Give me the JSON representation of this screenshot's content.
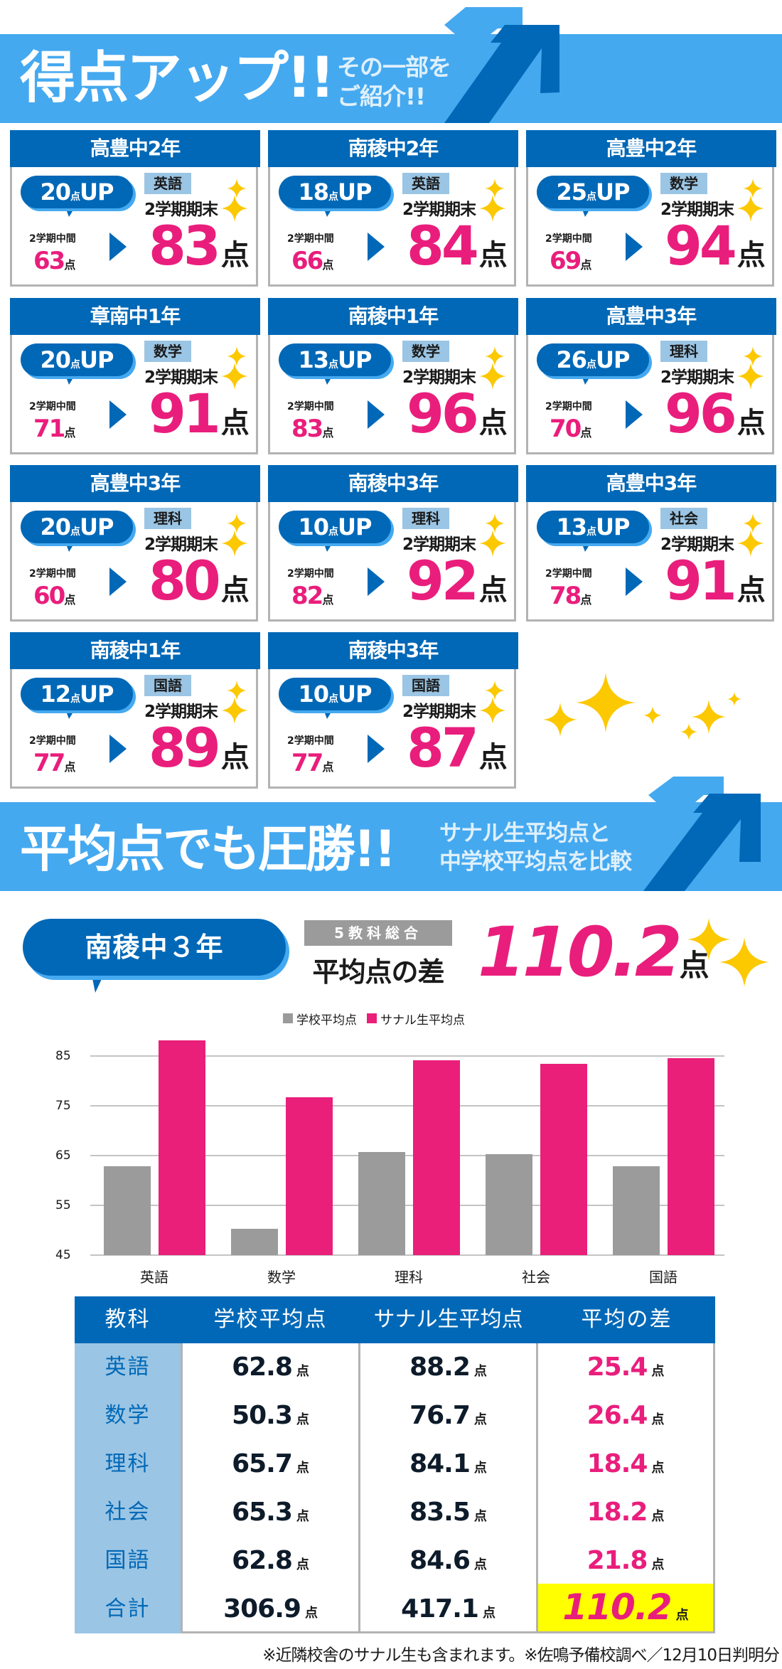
{
  "header": {
    "title": "得点アップ!!",
    "subtitle_line1": "その一部を",
    "subtitle_line2": "ご紹介!!"
  },
  "cards": [
    {
      "school": "高豊中2年",
      "gain": "20",
      "gain_unit": "点",
      "gain_suffix": "UP",
      "mid_label": "2学期中間",
      "mid_score": "63",
      "subject": "英語",
      "final_label": "2学期期末",
      "final_score": "83",
      "unit": "点"
    },
    {
      "school": "南稜中2年",
      "gain": "18",
      "gain_unit": "点",
      "gain_suffix": "UP",
      "mid_label": "2学期中間",
      "mid_score": "66",
      "subject": "英語",
      "final_label": "2学期期末",
      "final_score": "84",
      "unit": "点"
    },
    {
      "school": "高豊中2年",
      "gain": "25",
      "gain_unit": "点",
      "gain_suffix": "UP",
      "mid_label": "2学期中間",
      "mid_score": "69",
      "subject": "数学",
      "final_label": "2学期期末",
      "final_score": "94",
      "unit": "点"
    },
    {
      "school": "章南中1年",
      "gain": "20",
      "gain_unit": "点",
      "gain_suffix": "UP",
      "mid_label": "2学期中間",
      "mid_score": "71",
      "subject": "数学",
      "final_label": "2学期期末",
      "final_score": "91",
      "unit": "点"
    },
    {
      "school": "南稜中1年",
      "gain": "13",
      "gain_unit": "点",
      "gain_suffix": "UP",
      "mid_label": "2学期中間",
      "mid_score": "83",
      "subject": "数学",
      "final_label": "2学期期末",
      "final_score": "96",
      "unit": "点"
    },
    {
      "school": "高豊中3年",
      "gain": "26",
      "gain_unit": "点",
      "gain_suffix": "UP",
      "mid_label": "2学期中間",
      "mid_score": "70",
      "subject": "理科",
      "final_label": "2学期期末",
      "final_score": "96",
      "unit": "点"
    },
    {
      "school": "高豊中3年",
      "gain": "20",
      "gain_unit": "点",
      "gain_suffix": "UP",
      "mid_label": "2学期中間",
      "mid_score": "60",
      "subject": "理科",
      "final_label": "2学期期末",
      "final_score": "80",
      "unit": "点"
    },
    {
      "school": "南稜中3年",
      "gain": "10",
      "gain_unit": "点",
      "gain_suffix": "UP",
      "mid_label": "2学期中間",
      "mid_score": "82",
      "subject": "理科",
      "final_label": "2学期期末",
      "final_score": "92",
      "unit": "点"
    },
    {
      "school": "高豊中3年",
      "gain": "13",
      "gain_unit": "点",
      "gain_suffix": "UP",
      "mid_label": "2学期中間",
      "mid_score": "78",
      "subject": "社会",
      "final_label": "2学期期末",
      "final_score": "91",
      "unit": "点"
    },
    {
      "school": "南稜中1年",
      "gain": "12",
      "gain_unit": "点",
      "gain_suffix": "UP",
      "mid_label": "2学期中間",
      "mid_score": "77",
      "subject": "国語",
      "final_label": "2学期期末",
      "final_score": "89",
      "unit": "点"
    },
    {
      "school": "南稜中3年",
      "gain": "10",
      "gain_unit": "点",
      "gain_suffix": "UP",
      "mid_label": "2学期中間",
      "mid_score": "77",
      "subject": "国語",
      "final_label": "2学期期末",
      "final_score": "87",
      "unit": "点"
    }
  ],
  "banner2": {
    "title": "平均点でも圧勝!!",
    "subtitle_line1": "サナル生平均点と",
    "subtitle_line2": "中学校平均点を比較"
  },
  "summary": {
    "school": "南稜中３年",
    "tag": "5教科総合",
    "label": "平均点の差",
    "value": "110.2",
    "unit": "点"
  },
  "colors": {
    "brand_blue": "#0068b7",
    "light_blue": "#45a9f0",
    "pink": "#ea1f7a",
    "gray": "#9b9b9b",
    "gold": "#fcc800",
    "highlight_yellow": "#ffff00"
  },
  "chart_data": {
    "type": "bar",
    "title": "",
    "categories": [
      "英語",
      "数学",
      "理科",
      "社会",
      "国語"
    ],
    "series": [
      {
        "name": "学校平均点",
        "color": "#9b9b9b",
        "values": [
          62.8,
          50.3,
          65.7,
          65.3,
          62.8
        ]
      },
      {
        "name": "サナル生平均点",
        "color": "#ea1f7a",
        "values": [
          88.2,
          76.7,
          84.1,
          83.5,
          84.6
        ]
      }
    ],
    "xlabel": "",
    "ylabel": "",
    "yticks": [
      45,
      55,
      65,
      75,
      85
    ],
    "ylim": [
      45,
      90
    ],
    "grid": true,
    "legend_position": "top"
  },
  "table": {
    "headers": [
      "教科",
      "学校平均点",
      "サナル生平均点",
      "平均の差"
    ],
    "unit": "点",
    "rows": [
      {
        "subject": "英語",
        "school": "62.8",
        "sanaru": "88.2",
        "diff": "25.4"
      },
      {
        "subject": "数学",
        "school": "50.3",
        "sanaru": "76.7",
        "diff": "26.4"
      },
      {
        "subject": "理科",
        "school": "65.7",
        "sanaru": "84.1",
        "diff": "18.4"
      },
      {
        "subject": "社会",
        "school": "65.3",
        "sanaru": "83.5",
        "diff": "18.2"
      },
      {
        "subject": "国語",
        "school": "62.8",
        "sanaru": "84.6",
        "diff": "21.8"
      },
      {
        "subject": "合計",
        "school": "306.9",
        "sanaru": "417.1",
        "diff": "110.2"
      }
    ]
  },
  "footnote": "※近隣校舎のサナル生も含まれます。※佐鳴予備校調べ／12月10日判明分"
}
